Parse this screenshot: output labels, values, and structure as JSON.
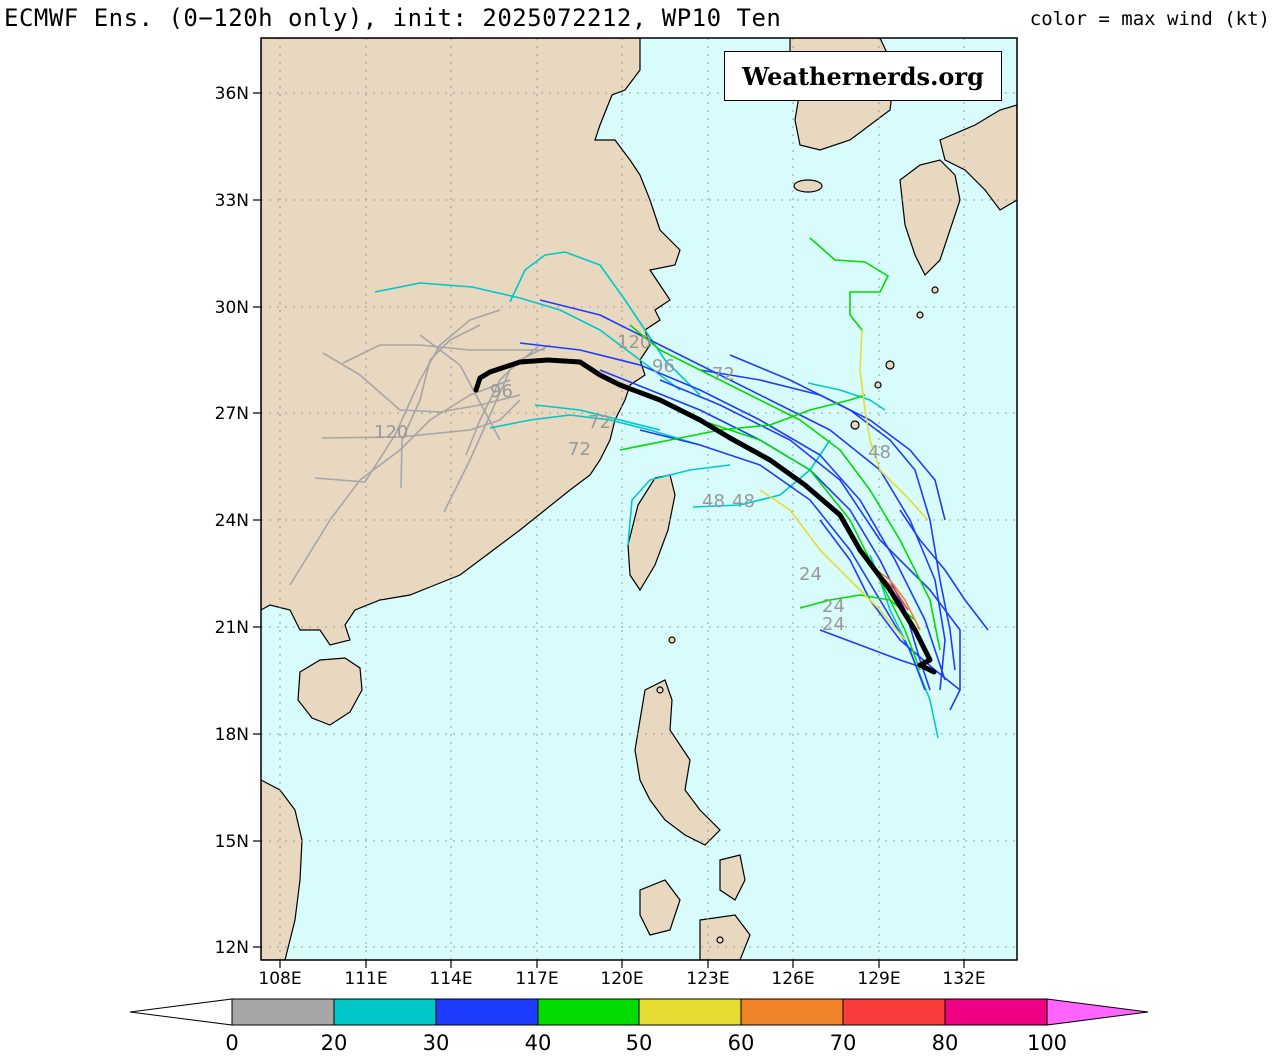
{
  "header": {
    "title": "ECMWF Ens. (0−120h only), init: 2025072212, WP10 Ten",
    "color_note": "color = max wind (kt)"
  },
  "watermark": "Weathernerds.org",
  "axes": {
    "lat_labels": [
      "36N",
      "33N",
      "30N",
      "27N",
      "24N",
      "21N",
      "18N",
      "15N",
      "12N"
    ],
    "lon_labels": [
      "108E",
      "111E",
      "114E",
      "117E",
      "120E",
      "123E",
      "126E",
      "129E",
      "132E"
    ]
  },
  "colorbar": {
    "labels": [
      "0",
      "20",
      "30",
      "40",
      "50",
      "60",
      "70",
      "80",
      "100"
    ],
    "colors": [
      "#a6a6a6",
      "#00c8c8",
      "#1e3cff",
      "#00dc00",
      "#e6dc32",
      "#f08228",
      "#fa3c3c",
      "#f00082",
      "#ff64ff"
    ]
  },
  "map_colors": {
    "land": "#e8d8c0",
    "ocean": "#d8fcfc",
    "grid": "#9a9a9a",
    "mean_track": "#000000"
  },
  "hour_labels": [
    "120",
    "96",
    "72",
    "72",
    "120",
    "48",
    "48",
    "48",
    "24",
    "24",
    "24",
    "96",
    "72"
  ]
}
